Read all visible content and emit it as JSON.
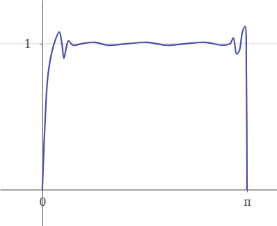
{
  "chart_data": {
    "type": "line",
    "x": [
      0,
      0.04,
      0.09,
      0.18,
      0.26,
      0.3,
      0.33,
      0.37,
      0.4,
      0.47,
      0.6,
      0.8,
      1.0,
      1.3,
      1.6,
      1.9,
      2.2,
      2.5,
      2.75,
      2.88,
      2.93,
      2.98,
      3.02,
      3.07,
      3.11,
      3.13,
      3.14
    ],
    "values": [
      0,
      0.45,
      0.8,
      1.0,
      1.08,
      1.0,
      0.9,
      0.98,
      1.02,
      0.99,
      1.0,
      1.01,
      0.99,
      1.0,
      1.01,
      0.99,
      1.0,
      1.01,
      0.99,
      1.0,
      1.04,
      0.93,
      0.95,
      1.08,
      1.12,
      0.8,
      0
    ],
    "color": "#4a4fa8",
    "xlim": [
      -0.65,
      3.6
    ],
    "ylim": [
      -0.25,
      1.3
    ],
    "xticks": [
      0,
      {
        "value": 3.14,
        "label": "π"
      }
    ],
    "yticks": [
      1
    ],
    "grid": true
  }
}
